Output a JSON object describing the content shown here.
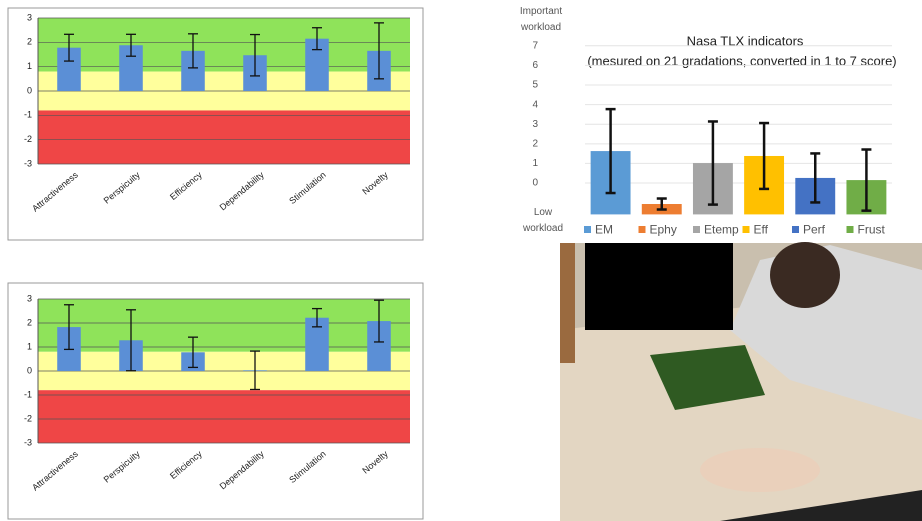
{
  "chart_data": [
    {
      "type": "ueq-bar",
      "categories": [
        "Attractiveness",
        "Perspicuity",
        "Efficiency",
        "Dependability",
        "Stimulation",
        "Novelty"
      ],
      "values": [
        1.78,
        1.88,
        1.65,
        1.47,
        2.15,
        1.65
      ],
      "errors": [
        0.55,
        0.45,
        0.7,
        0.85,
        0.45,
        1.15
      ],
      "color": "#5b8fd6",
      "ylim": [
        -3,
        3
      ],
      "yticks": [
        -3,
        -2,
        -1,
        0,
        1,
        2,
        3
      ],
      "grid": true,
      "bands": [
        {
          "from": 0.8,
          "to": 3,
          "color": "#8fe35a"
        },
        {
          "from": -0.8,
          "to": 0.8,
          "color": "#ffff9c"
        },
        {
          "from": -3,
          "to": -0.8,
          "color": "#ef4646"
        }
      ]
    },
    {
      "type": "ueq-bar",
      "categories": [
        "Attractiveness",
        "Perspicuity",
        "Efficiency",
        "Dependability",
        "Stimulation",
        "Novelty"
      ],
      "values": [
        1.83,
        1.28,
        0.78,
        0.03,
        2.22,
        2.08
      ],
      "errors": [
        0.93,
        1.27,
        0.63,
        0.8,
        0.38,
        0.87
      ],
      "color": "#5b8fd6",
      "ylim": [
        -3,
        3
      ],
      "yticks": [
        -3,
        -2,
        -1,
        0,
        1,
        2,
        3
      ],
      "grid": true,
      "bands": [
        {
          "from": 0.8,
          "to": 3,
          "color": "#8fe35a"
        },
        {
          "from": -0.8,
          "to": 0.8,
          "color": "#ffff9c"
        },
        {
          "from": -3,
          "to": -0.8,
          "color": "#ef4646"
        }
      ]
    },
    {
      "type": "tlx-bar",
      "title": "Nasa TLX indicators",
      "subtitle": "(mesured on 21 gradations, converted in 1 to 7 score)",
      "y_top_label": "Important workload",
      "y_bottom_label": "Low workload",
      "categories": [
        "EM",
        "Ephy",
        "Etemp",
        "Eff",
        "Perf",
        "Frust"
      ],
      "values": [
        1.63,
        -1.07,
        1.02,
        1.38,
        0.26,
        0.15
      ],
      "errors": [
        2.14,
        0.28,
        2.12,
        1.68,
        1.25,
        1.56
      ],
      "colors": [
        "#5b9bd5",
        "#ed7d31",
        "#a5a5a5",
        "#ffc000",
        "#4472c4",
        "#70ad47"
      ],
      "ylim": [
        -1.6,
        7
      ],
      "yticks": [
        0,
        1,
        2,
        3,
        4,
        5,
        6,
        7
      ],
      "grid": true
    }
  ]
}
